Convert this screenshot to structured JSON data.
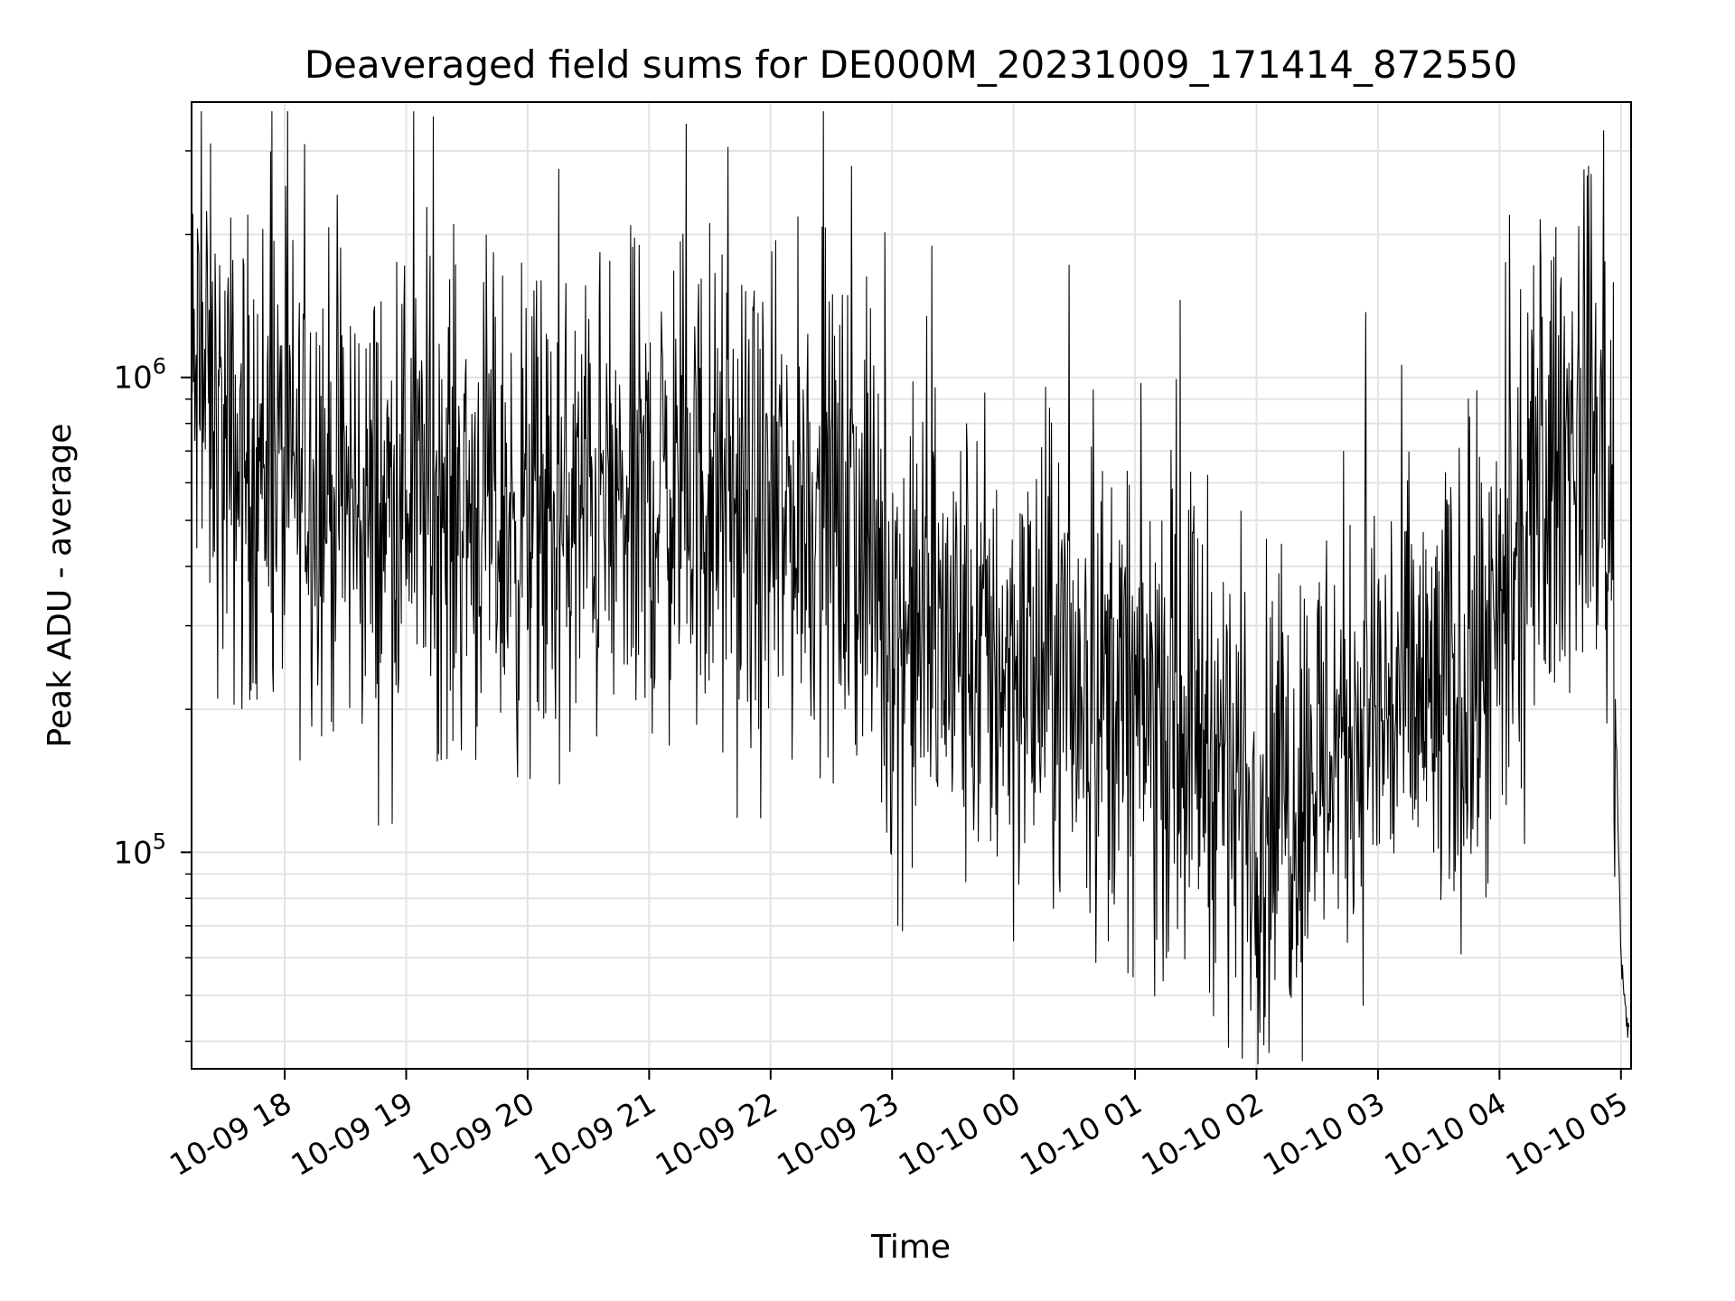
{
  "chart_data": {
    "type": "line",
    "title": "Deaveraged field sums for DE000M_20231009_171414_872550",
    "xlabel": "Time",
    "ylabel": "Peak ADU - average",
    "yscale": "log",
    "ylim": [
      35000,
      3800000
    ],
    "xlim": [
      "2023-10-09 17:14",
      "2023-10-10 05:05"
    ],
    "grid": true,
    "line_color": "#000000",
    "x_ticks": [
      {
        "t": "2023-10-09 18:00",
        "label": "10-09 18"
      },
      {
        "t": "2023-10-09 19:00",
        "label": "10-09 19"
      },
      {
        "t": "2023-10-09 20:00",
        "label": "10-09 20"
      },
      {
        "t": "2023-10-09 21:00",
        "label": "10-09 21"
      },
      {
        "t": "2023-10-09 22:00",
        "label": "10-09 22"
      },
      {
        "t": "2023-10-09 23:00",
        "label": "10-09 23"
      },
      {
        "t": "2023-10-10 00:00",
        "label": "10-10 00"
      },
      {
        "t": "2023-10-10 01:00",
        "label": "10-10 01"
      },
      {
        "t": "2023-10-10 02:00",
        "label": "10-10 02"
      },
      {
        "t": "2023-10-10 03:00",
        "label": "10-10 03"
      },
      {
        "t": "2023-10-10 04:00",
        "label": "10-10 04"
      },
      {
        "t": "2023-10-10 05:00",
        "label": "10-10 05"
      }
    ],
    "y_ticks": [
      {
        "value": 100000,
        "base": "10",
        "exp": "5"
      },
      {
        "value": 1000000,
        "base": "10",
        "exp": "6"
      }
    ],
    "series": [
      {
        "x": [
          "2023-10-09 17:14",
          "2023-10-09 17:20",
          "2023-10-09 17:30",
          "2023-10-09 17:40",
          "2023-10-09 17:50",
          "2023-10-09 18:00",
          "2023-10-09 18:15",
          "2023-10-09 18:30",
          "2023-10-09 18:45",
          "2023-10-09 19:00",
          "2023-10-09 19:15",
          "2023-10-09 19:30",
          "2023-10-09 19:45",
          "2023-10-09 20:00",
          "2023-10-09 20:15",
          "2023-10-09 20:30",
          "2023-10-09 20:45",
          "2023-10-09 21:00",
          "2023-10-09 21:15",
          "2023-10-09 21:30",
          "2023-10-09 21:45",
          "2023-10-09 22:00",
          "2023-10-09 22:15",
          "2023-10-09 22:30",
          "2023-10-09 22:45",
          "2023-10-09 23:00",
          "2023-10-09 23:15",
          "2023-10-09 23:30",
          "2023-10-09 23:45",
          "2023-10-10 00:00",
          "2023-10-10 00:15",
          "2023-10-10 00:30",
          "2023-10-10 00:45",
          "2023-10-10 01:00",
          "2023-10-10 01:15",
          "2023-10-10 01:30",
          "2023-10-10 01:45",
          "2023-10-10 02:00",
          "2023-10-10 02:15",
          "2023-10-10 02:30",
          "2023-10-10 02:45",
          "2023-10-10 03:00",
          "2023-10-10 03:15",
          "2023-10-10 03:30",
          "2023-10-10 03:45",
          "2023-10-10 04:00",
          "2023-10-10 04:15",
          "2023-10-10 04:30",
          "2023-10-10 04:45",
          "2023-10-10 04:55",
          "2023-10-10 05:00",
          "2023-10-10 05:04"
        ],
        "y": [
          900000,
          950000,
          700000,
          650000,
          700000,
          600000,
          650000,
          550000,
          500000,
          600000,
          550000,
          550000,
          500000,
          500000,
          450000,
          550000,
          500000,
          550000,
          600000,
          550000,
          500000,
          450000,
          550000,
          500000,
          450000,
          300000,
          280000,
          270000,
          260000,
          250000,
          240000,
          230000,
          220000,
          200000,
          190000,
          200000,
          150000,
          120000,
          130000,
          160000,
          190000,
          200000,
          210000,
          200000,
          220000,
          250000,
          450000,
          700000,
          800000,
          550000,
          60000,
          40000
        ]
      }
    ]
  }
}
